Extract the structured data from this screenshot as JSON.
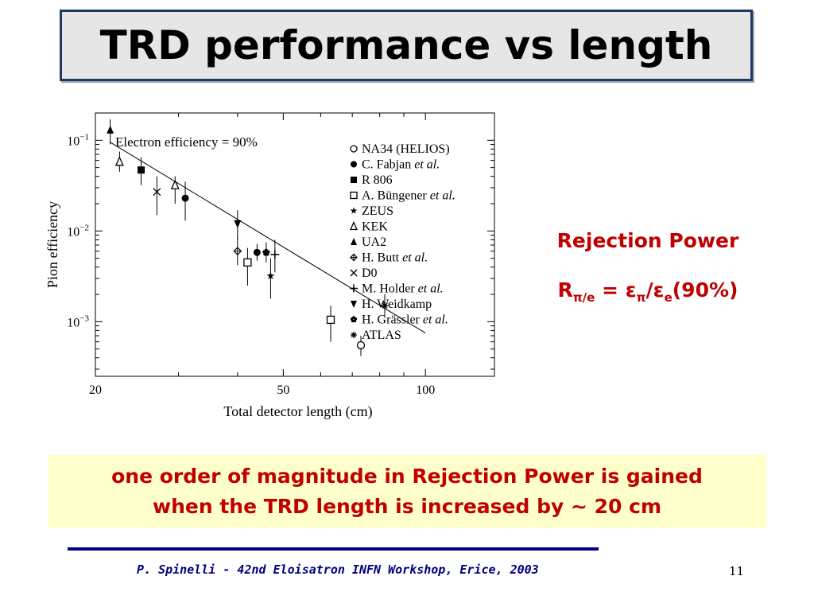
{
  "slide": {
    "title": "TRD performance vs length",
    "rejection_power": {
      "heading": "Rejection Power",
      "R": "R",
      "R_sub": "π/e",
      "eq": " = ",
      "eps1": "ε",
      "eps1_sub": "π",
      "slash": "/",
      "eps2": "ε",
      "eps2_sub": "e",
      "tail": "(90%)"
    },
    "callout": {
      "line1": "one order of magnitude in Rejection Power is gained",
      "line2": "when the TRD length is increased by ~ 20 cm"
    },
    "footer": "P. Spinelli - 42nd Eloisatron INFN Workshop, Erice, 2003",
    "page_number": "11"
  },
  "chart_data": {
    "type": "scatter",
    "annotation": "Electron efficiency = 90%",
    "xlabel": "Total detector length (cm)",
    "ylabel": "Pion efficiency",
    "x_scale": "log",
    "y_scale": "log",
    "xlim": [
      20,
      140
    ],
    "ylim": [
      0.00025,
      0.2
    ],
    "x_ticks": [
      {
        "value": 20,
        "label": "20"
      },
      {
        "value": 50,
        "label": "50"
      },
      {
        "value": 100,
        "label": "100"
      }
    ],
    "y_ticks": [
      {
        "value": 0.1,
        "base": "10",
        "exp": "−1"
      },
      {
        "value": 0.01,
        "base": "10",
        "exp": "−2"
      },
      {
        "value": 0.001,
        "base": "10",
        "exp": "−3"
      }
    ],
    "grid": false,
    "legend_position": "top-right",
    "fit_line": {
      "x": [
        21.5,
        100
      ],
      "y": [
        0.095,
        0.00075
      ]
    },
    "series": [
      {
        "name": "NA34 (HELIOS)",
        "marker": "circle-open",
        "points": [
          {
            "x": 73,
            "y": 0.00055,
            "lo": 0.00042,
            "hi": 0.0007
          }
        ]
      },
      {
        "name": "C. Fabjan et al.",
        "marker": "circle-filled",
        "points": [
          {
            "x": 31,
            "y": 0.023,
            "lo": 0.013,
            "hi": 0.035
          },
          {
            "x": 44,
            "y": 0.0058,
            "lo": 0.0047,
            "hi": 0.0072
          }
        ]
      },
      {
        "name": "R 806",
        "marker": "square-filled",
        "points": [
          {
            "x": 25,
            "y": 0.047,
            "lo": 0.032,
            "hi": 0.065
          }
        ]
      },
      {
        "name": "A. Büngener et al.",
        "marker": "square-open",
        "points": [
          {
            "x": 42,
            "y": 0.0045,
            "lo": 0.0025,
            "hi": 0.0065
          },
          {
            "x": 63,
            "y": 0.00105,
            "lo": 0.0006,
            "hi": 0.0015
          }
        ]
      },
      {
        "name": "ZEUS",
        "marker": "star",
        "points": [
          {
            "x": 47,
            "y": 0.0032,
            "lo": 0.0018,
            "hi": 0.005
          }
        ]
      },
      {
        "name": "KEK",
        "marker": "triangle-open",
        "points": [
          {
            "x": 22.5,
            "y": 0.058,
            "lo": 0.045,
            "hi": 0.075
          },
          {
            "x": 29.5,
            "y": 0.032,
            "lo": 0.02,
            "hi": 0.04
          }
        ]
      },
      {
        "name": "UA2",
        "marker": "triangle-filled",
        "points": [
          {
            "x": 21.5,
            "y": 0.13,
            "lo": 0.09,
            "hi": 0.17
          }
        ]
      },
      {
        "name": "H. Butt et al.",
        "marker": "diamond-cross",
        "points": [
          {
            "x": 40,
            "y": 0.006,
            "lo": 0.0042,
            "hi": 0.0085
          }
        ]
      },
      {
        "name": "D0",
        "marker": "x",
        "points": [
          {
            "x": 27,
            "y": 0.027,
            "lo": 0.015,
            "hi": 0.04
          }
        ]
      },
      {
        "name": "M. Holder et al.",
        "marker": "plus",
        "points": [
          {
            "x": 48,
            "y": 0.0055,
            "lo": 0.0035,
            "hi": 0.008
          }
        ]
      },
      {
        "name": "H. Weidkamp",
        "marker": "triangle-down-filled",
        "points": [
          {
            "x": 40,
            "y": 0.012,
            "lo": 0.008,
            "hi": 0.017
          }
        ]
      },
      {
        "name": "H. Grässler et al.",
        "marker": "flower",
        "points": [
          {
            "x": 46,
            "y": 0.0058,
            "lo": 0.0045,
            "hi": 0.0075
          }
        ]
      },
      {
        "name": "ATLAS",
        "marker": "asterisk",
        "points": [
          {
            "x": 82,
            "y": 0.0015,
            "lo": 0.0011,
            "hi": 0.002
          }
        ]
      }
    ]
  }
}
